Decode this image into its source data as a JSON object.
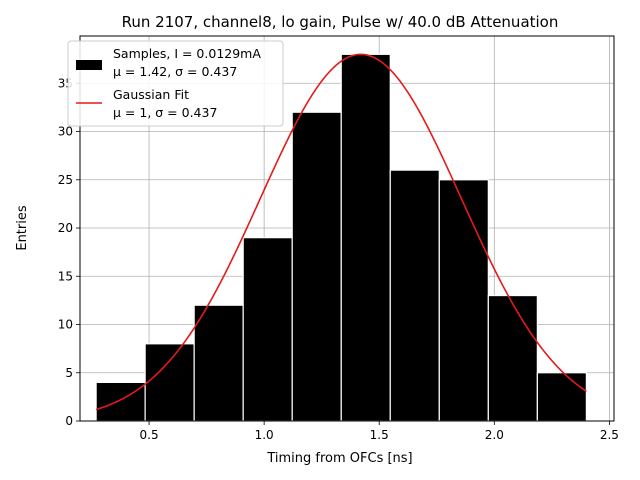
{
  "chart_data": {
    "type": "bar",
    "title": "Run 2107, channel8, lo gain, Pulse w/ 40.0 dB Attenuation",
    "xlabel": "Timing from OFCs [ns]",
    "ylabel": "Entries",
    "xlim": [
      0.2,
      2.52
    ],
    "ylim": [
      0,
      39.9
    ],
    "x_ticks": [
      {
        "value": 0.5,
        "label": "0.5"
      },
      {
        "value": 1.0,
        "label": "1.0"
      },
      {
        "value": 1.5,
        "label": "1.5"
      },
      {
        "value": 2.0,
        "label": "2.0"
      },
      {
        "value": 2.5,
        "label": "2.5"
      }
    ],
    "y_ticks": [
      {
        "value": 0,
        "label": "0"
      },
      {
        "value": 5,
        "label": "5"
      },
      {
        "value": 10,
        "label": "10"
      },
      {
        "value": 15,
        "label": "15"
      },
      {
        "value": 20,
        "label": "20"
      },
      {
        "value": 25,
        "label": "25"
      },
      {
        "value": 30,
        "label": "30"
      },
      {
        "value": 35,
        "label": "35"
      }
    ],
    "grid": true,
    "legend_position": "top-left",
    "histogram": {
      "name_line1": "Samples, I = 0.0129mA",
      "name_line2": "μ = 1.42, σ = 0.437",
      "color": "#000000",
      "edge_color": "#ffffff",
      "bins": [
        {
          "x0": 0.27,
          "x1": 0.483,
          "count": 4
        },
        {
          "x0": 0.483,
          "x1": 0.696,
          "count": 8
        },
        {
          "x0": 0.696,
          "x1": 0.909,
          "count": 12
        },
        {
          "x0": 0.909,
          "x1": 1.122,
          "count": 19
        },
        {
          "x0": 1.122,
          "x1": 1.335,
          "count": 32
        },
        {
          "x0": 1.335,
          "x1": 1.548,
          "count": 38
        },
        {
          "x0": 1.548,
          "x1": 1.761,
          "count": 26
        },
        {
          "x0": 1.761,
          "x1": 1.974,
          "count": 25
        },
        {
          "x0": 1.974,
          "x1": 2.187,
          "count": 13
        },
        {
          "x0": 2.187,
          "x1": 2.4,
          "count": 5
        }
      ]
    },
    "fit": {
      "name_line1": "Gaussian Fit",
      "name_line2": "μ = 1, σ = 0.437",
      "color": "#e41a1c",
      "x_range": [
        0.27,
        2.4
      ],
      "mu": 1.42,
      "sigma": 0.437,
      "amplitude": 38.0
    }
  }
}
